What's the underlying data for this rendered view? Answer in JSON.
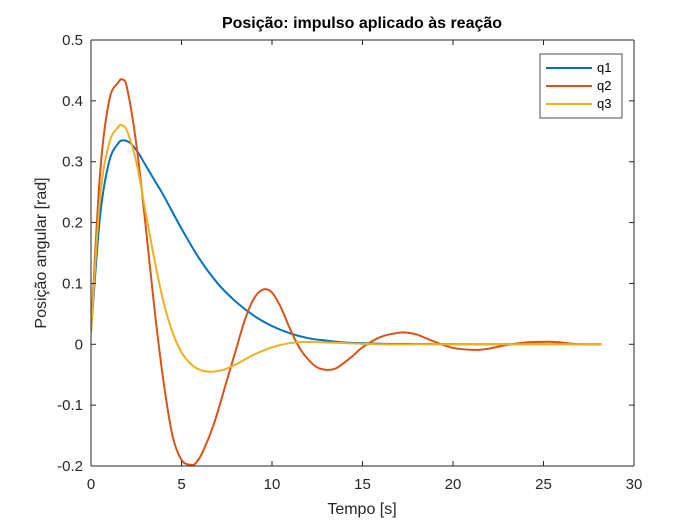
{
  "chart_data": {
    "type": "line",
    "title": "Posição: impulso aplicado às reação",
    "xlabel": "Tempo [s]",
    "ylabel": "Posição angular [rad]",
    "xlim": [
      0,
      30
    ],
    "ylim": [
      -0.2,
      0.5
    ],
    "xticks": [
      0,
      5,
      10,
      15,
      20,
      25,
      30
    ],
    "yticks": [
      -0.2,
      -0.1,
      0,
      0.1,
      0.2,
      0.3,
      0.4,
      0.5
    ],
    "xtick_labels": [
      "0",
      "5",
      "10",
      "15",
      "20",
      "25",
      "30"
    ],
    "ytick_labels": [
      "-0.2",
      "-0.1",
      "0",
      "0.1",
      "0.2",
      "0.3",
      "0.4",
      "0.5"
    ],
    "grid": false,
    "legend_position": "top-right",
    "series": [
      {
        "name": "q1",
        "color": "#0072BD",
        "x": [
          0,
          0.5,
          1.0,
          1.5,
          1.8,
          2.2,
          2.6,
          3.0,
          3.5,
          4.0,
          5.0,
          6.0,
          7.0,
          8.0,
          9.0,
          10.0,
          11.0,
          12.0,
          13.0,
          14.0,
          16.0,
          18.0,
          20.0,
          22.0,
          25.0,
          28.2
        ],
        "y": [
          0.02,
          0.21,
          0.3,
          0.33,
          0.335,
          0.33,
          0.315,
          0.295,
          0.27,
          0.245,
          0.19,
          0.14,
          0.1,
          0.07,
          0.047,
          0.03,
          0.018,
          0.01,
          0.006,
          0.003,
          0.001,
          0.0005,
          0.0002,
          0.0,
          0.0,
          0.0
        ]
      },
      {
        "name": "q2",
        "color": "#D95319",
        "x": [
          0,
          0.5,
          1.0,
          1.5,
          1.75,
          2.0,
          2.5,
          3.0,
          3.5,
          4.0,
          4.5,
          5.0,
          5.5,
          5.8,
          6.2,
          6.8,
          7.5,
          8.0,
          8.5,
          9.0,
          9.5,
          10.0,
          10.5,
          11.0,
          11.5,
          12.0,
          12.5,
          13.0,
          13.5,
          14.0,
          14.5,
          15.0,
          16.0,
          17.0,
          17.5,
          18.0,
          19.0,
          20.0,
          21.0,
          21.5,
          22.0,
          23.0,
          24.0,
          25.0,
          25.5,
          26.0,
          27.0,
          28.2
        ],
        "y": [
          0.02,
          0.28,
          0.4,
          0.43,
          0.435,
          0.42,
          0.33,
          0.2,
          0.06,
          -0.06,
          -0.15,
          -0.19,
          -0.198,
          -0.195,
          -0.175,
          -0.13,
          -0.06,
          -0.01,
          0.04,
          0.075,
          0.09,
          0.085,
          0.06,
          0.025,
          -0.005,
          -0.025,
          -0.038,
          -0.042,
          -0.04,
          -0.03,
          -0.018,
          -0.005,
          0.012,
          0.019,
          0.019,
          0.016,
          0.004,
          -0.006,
          -0.009,
          -0.009,
          -0.007,
          -0.001,
          0.003,
          0.004,
          0.004,
          0.003,
          0.0,
          0.0
        ]
      },
      {
        "name": "q3",
        "color": "#EDB120",
        "x": [
          0,
          0.5,
          1.0,
          1.5,
          1.7,
          2.0,
          2.5,
          3.0,
          3.5,
          4.0,
          4.5,
          5.0,
          5.5,
          6.0,
          6.5,
          7.0,
          7.5,
          8.0,
          8.5,
          9.0,
          10.0,
          11.0,
          12.0,
          13.0,
          14.0,
          16.0,
          18.0,
          20.0,
          25.0,
          28.2
        ],
        "y": [
          0.02,
          0.24,
          0.33,
          0.357,
          0.36,
          0.35,
          0.3,
          0.22,
          0.14,
          0.07,
          0.02,
          -0.013,
          -0.032,
          -0.042,
          -0.045,
          -0.044,
          -0.04,
          -0.033,
          -0.025,
          -0.017,
          -0.005,
          0.002,
          0.004,
          0.003,
          0.002,
          0.0,
          0.0,
          0.0,
          0.0,
          0.0
        ]
      }
    ]
  }
}
